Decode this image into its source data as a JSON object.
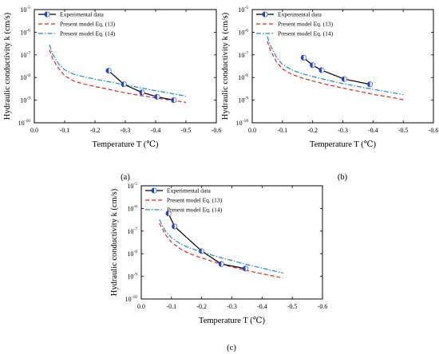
{
  "chart_data": [
    {
      "type": "line",
      "caption": "(a)",
      "xlabel": "Temperature T (℃)",
      "ylabel": "Hydraulic conductivity k (cm/s)",
      "xlim": [
        0.0,
        -0.6
      ],
      "ylim": [
        1e-10,
        1e-05
      ],
      "yscale": "log",
      "xticks": [
        "0.0",
        "-0.1",
        "-0.2",
        "-0.3",
        "-0.4",
        "-0.5",
        "-0.6"
      ],
      "legend_position": "top-left",
      "series": [
        {
          "name": "Experimental data",
          "style": "solid",
          "color": "#000000",
          "marker": "half-filled-circle",
          "marker_color": "#1f3fe0",
          "x": [
            -0.245,
            -0.295,
            -0.355,
            -0.405,
            -0.46
          ],
          "y": [
            2e-08,
            5e-09,
            2.2e-09,
            1.4e-09,
            1e-09
          ]
        },
        {
          "name": "Present model Eq. (13)",
          "style": "dashed",
          "color": "#e8241b",
          "x": [
            -0.05,
            -0.06,
            -0.08,
            -0.1,
            -0.13,
            -0.16,
            -0.2,
            -0.25,
            -0.3,
            -0.35,
            -0.4,
            -0.45,
            -0.5
          ],
          "y": [
            1.7e-07,
            7e-08,
            2.5e-08,
            1.2e-08,
            7e-09,
            5.3e-09,
            4e-09,
            2.9e-09,
            2.1e-09,
            1.6e-09,
            1.25e-09,
            1e-09,
            8e-10
          ]
        },
        {
          "name": "Present model Eq. (14)",
          "style": "dashdot",
          "color": "#1b8fb5",
          "x": [
            -0.05,
            -0.06,
            -0.08,
            -0.1,
            -0.13,
            -0.16,
            -0.2,
            -0.25,
            -0.3,
            -0.35,
            -0.4,
            -0.45,
            -0.5
          ],
          "y": [
            2.8e-07,
            1.1e-07,
            4e-08,
            2.2e-08,
            1.4e-08,
            1.1e-08,
            8.5e-09,
            6.3e-09,
            4.7e-09,
            3.5e-09,
            2.6e-09,
            2e-09,
            1.5e-09
          ]
        }
      ]
    },
    {
      "type": "line",
      "caption": "(b)",
      "xlabel": "Temperature T (℃)",
      "ylabel": "Hydraulic conductivity k (cm/s)",
      "xlim": [
        0.0,
        -0.6
      ],
      "ylim": [
        1e-10,
        1e-05
      ],
      "yscale": "log",
      "xticks": [
        "0.0",
        "-0.1",
        "-0.2",
        "-0.3",
        "-0.4",
        "-0.5",
        "-0.6"
      ],
      "legend_position": "top-left",
      "series": [
        {
          "name": "Experimental data",
          "style": "solid",
          "color": "#000000",
          "marker": "half-filled-circle",
          "marker_color": "#1f3fe0",
          "x": [
            -0.17,
            -0.2,
            -0.23,
            -0.305,
            -0.39
          ],
          "y": [
            7.5e-08,
            3.5e-08,
            2.1e-08,
            8.5e-09,
            5e-09
          ]
        },
        {
          "name": "Present model Eq. (13)",
          "style": "dashed",
          "color": "#e8241b",
          "x": [
            -0.05,
            -0.06,
            -0.08,
            -0.1,
            -0.13,
            -0.16,
            -0.2,
            -0.25,
            -0.3,
            -0.35,
            -0.4,
            -0.45,
            -0.5
          ],
          "y": [
            4e-07,
            1.6e-07,
            5e-08,
            2.4e-08,
            1.4e-08,
            1e-08,
            7e-09,
            4.8e-09,
            3.4e-09,
            2.5e-09,
            1.8e-09,
            1.4e-09,
            1.05e-09
          ]
        },
        {
          "name": "Present model Eq. (14)",
          "style": "dashdot",
          "color": "#1b8fb5",
          "x": [
            -0.05,
            -0.06,
            -0.08,
            -0.1,
            -0.13,
            -0.16,
            -0.2,
            -0.25,
            -0.3,
            -0.35,
            -0.4,
            -0.45,
            -0.5
          ],
          "y": [
            6.5e-07,
            2.6e-07,
            8e-08,
            3.8e-08,
            2.2e-08,
            1.55e-08,
            1.1e-08,
            7.6e-09,
            5.4e-09,
            4e-09,
            3e-09,
            2.3e-09,
            1.75e-09
          ]
        }
      ]
    },
    {
      "type": "line",
      "caption": "(c)",
      "xlabel": "Temperature T (℃)",
      "ylabel": "Hydraulic conductivity k (cm/s)",
      "xlim": [
        0.0,
        -0.6
      ],
      "ylim": [
        1e-10,
        1e-05
      ],
      "yscale": "log",
      "xticks": [
        "0.0",
        "-0.1",
        "-0.2",
        "-0.3",
        "-0.4",
        "-0.5",
        "-0.6"
      ],
      "legend_position": "top-left",
      "series": [
        {
          "name": "Experimental data",
          "style": "solid",
          "color": "#000000",
          "marker": "half-filled-circle",
          "marker_color": "#1f3fe0",
          "x": [
            -0.09,
            -0.11,
            -0.2,
            -0.265,
            -0.345
          ],
          "y": [
            6e-07,
            1.6e-07,
            1.3e-08,
            3.5e-09,
            2.2e-09
          ]
        },
        {
          "name": "Present model Eq. (13)",
          "style": "dashed",
          "color": "#e8241b",
          "x": [
            -0.06,
            -0.08,
            -0.1,
            -0.13,
            -0.16,
            -0.2,
            -0.25,
            -0.3,
            -0.35,
            -0.4,
            -0.47
          ],
          "y": [
            2.2e-07,
            7e-08,
            3.2e-08,
            1.6e-08,
            1e-08,
            6.5e-09,
            4e-09,
            2.6e-09,
            1.8e-09,
            1.3e-09,
            8.5e-10
          ]
        },
        {
          "name": "Present model Eq. (14)",
          "style": "dashdot",
          "color": "#1b8fb5",
          "x": [
            -0.06,
            -0.08,
            -0.1,
            -0.13,
            -0.16,
            -0.2,
            -0.25,
            -0.3,
            -0.35,
            -0.4,
            -0.47
          ],
          "y": [
            3.2e-07,
            1e-07,
            5e-08,
            2.7e-08,
            1.8e-08,
            1.2e-08,
            7.5e-09,
            5e-09,
            3.3e-09,
            2.3e-09,
            1.4e-09
          ]
        }
      ]
    }
  ]
}
